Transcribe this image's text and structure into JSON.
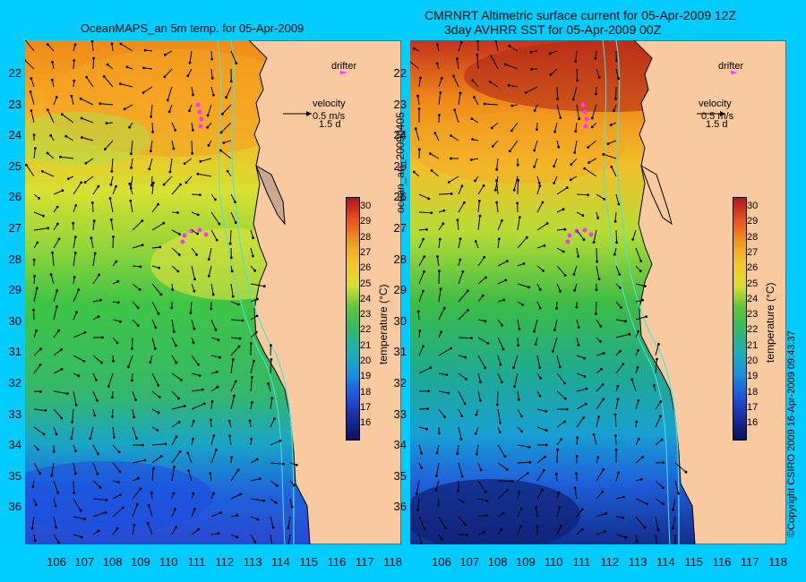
{
  "titles": {
    "left": "OceanMAPS_an 5m temp. for 05-Apr-2009",
    "right_line1": "CMRNRT Altimetric surface current for 05-Apr-2009 12Z",
    "right_line2": "3day AVHRR SST for 05-Apr-2009 00Z"
  },
  "side_text": {
    "run_id": "ocean_an_20090405",
    "copyright": "©Copyright CSIRO 2009   16-Apr-2009 09:43:37"
  },
  "legend": {
    "drifter": "drifter",
    "velocity": "velocity",
    "speed": "0.5 m/s",
    "period": "1.5 d"
  },
  "colorbar": {
    "label": "temperature (°C)",
    "ticks": [
      "30",
      "29",
      "28",
      "27",
      "26",
      "25",
      "24",
      "23",
      "22",
      "21",
      "20",
      "19",
      "18",
      "17",
      "16"
    ]
  },
  "axes": {
    "lat_labels": [
      "22",
      "23",
      "24",
      "25",
      "26",
      "27",
      "28",
      "29",
      "30",
      "31",
      "32",
      "33",
      "34",
      "35",
      "36"
    ],
    "lon_labels": [
      "106",
      "107",
      "108",
      "109",
      "110",
      "111",
      "112",
      "113",
      "114",
      "115",
      "116",
      "117",
      "118"
    ]
  },
  "colors": {
    "background": "#00ccff",
    "land": "#f9c9a0",
    "drifter": "#ff33ff",
    "arrow": "#000000",
    "contour": "#4fe0d8"
  }
}
